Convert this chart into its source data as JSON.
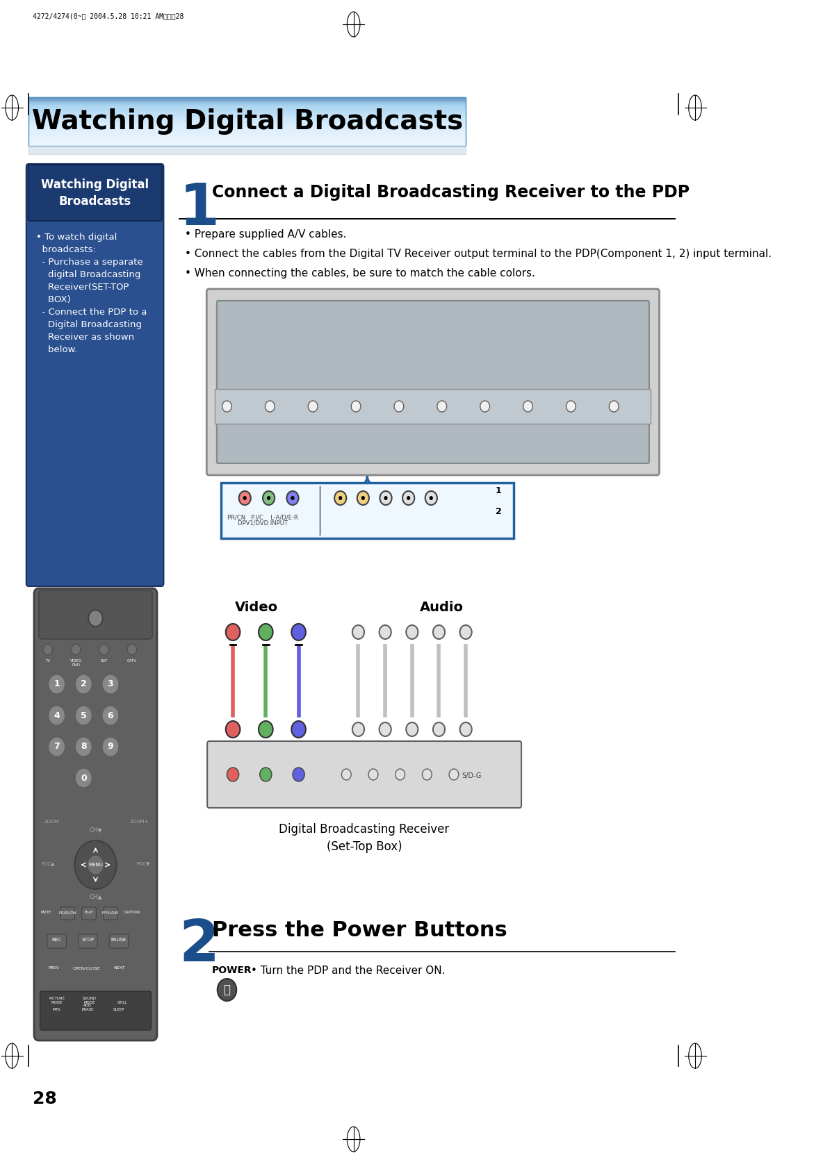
{
  "page_header_text": "4272/4274(0~） 2004.5.28 10:21 AM페이직28",
  "title_banner_text": "Watching Digital Broadcasts",
  "title_banner_color_top": "#a8d4f0",
  "title_banner_color_mid": "#d0e8f8",
  "title_banner_color_bot": "#e8f4fc",
  "sidebar_title": "Watching Digital\nBroadcasts",
  "sidebar_bg": "#2060a0",
  "sidebar_text_color": "#ffffff",
  "sidebar_bullet_text": "• To watch digital\n  broadcasts:\n  - Purchase a separate\n    digital Broadcasting\n    Receiver(SET-TOP\n    BOX)\n  - Connect the PDP to a\n    Digital Broadcasting\n    Receiver as shown\n    below.",
  "step1_heading": "Connect a Digital Broadcasting Receiver to the PDP",
  "step1_num": "1",
  "step1_bullets": [
    "• Prepare supplied A/V cables.",
    "• Connect the cables from the Digital TV Receiver output terminal to the PDP(Component 1, 2) input terminal.",
    "• When connecting the cables, be sure to match the cable colors."
  ],
  "video_label": "Video",
  "audio_label": "Audio",
  "caption_label": "Digital Broadcasting Receiver\n(Set-Top Box)",
  "step2_heading": "Press the Power Buttons",
  "step2_num": "2",
  "power_label": "POWER",
  "step2_bullet": "• Turn the PDP and the Receiver ON.",
  "page_number": "28",
  "bg_color": "#ffffff",
  "line_color": "#000000",
  "step_num_color": "#1a4d8a",
  "step_heading_color": "#000000"
}
